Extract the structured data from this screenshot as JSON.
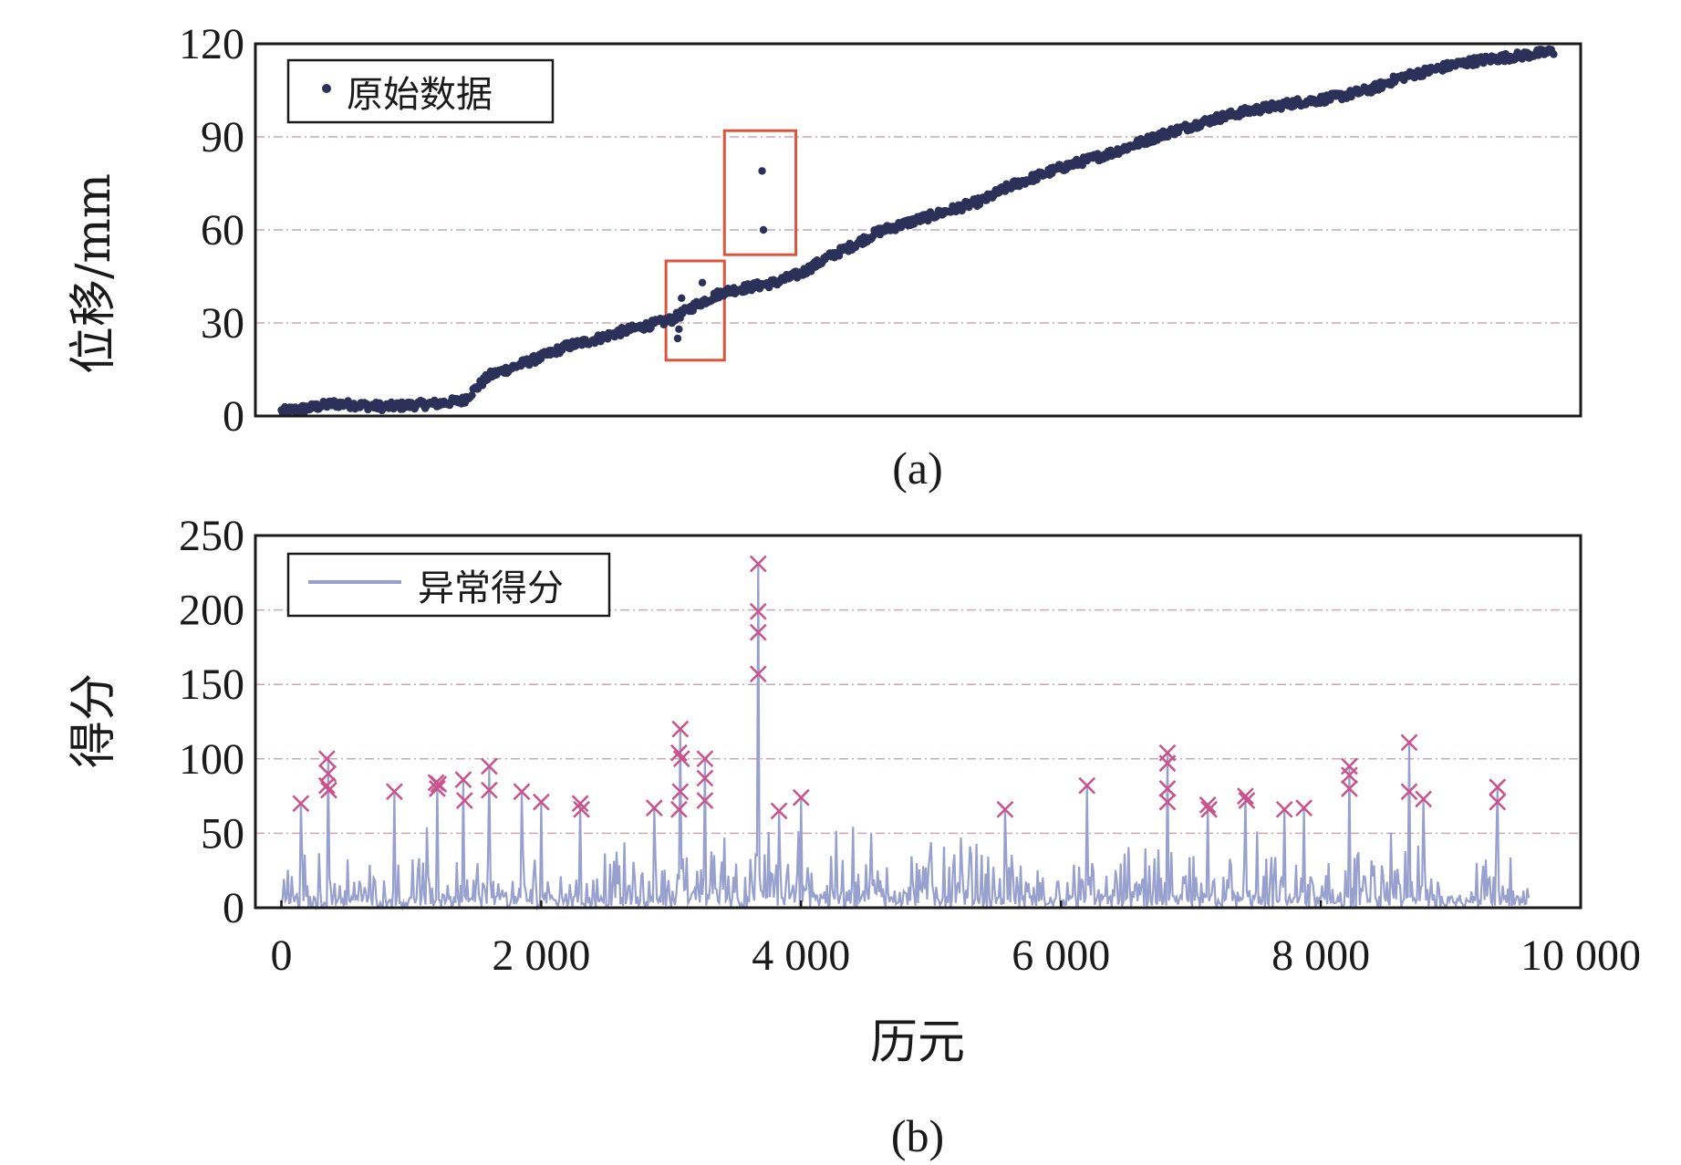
{
  "colors": {
    "raw_points": "#2b3158",
    "score_line": "#98a0cd",
    "anomaly_marker": "#c9528c",
    "highlight_box": "#d9553d",
    "grid": "#c9a7b4",
    "axis": "#1a1a1a"
  },
  "chart_data": [
    {
      "panel_label": "(a)",
      "type": "scatter",
      "ylabel": "位移/mm",
      "xlabel": "",
      "xlim": [
        -200,
        10000
      ],
      "ylim": [
        0,
        120
      ],
      "yticks": [
        "0",
        "30",
        "60",
        "90",
        "120"
      ],
      "grid": "horizontal dash-dot",
      "legend": {
        "placement": "top-left",
        "entries": [
          "原始数据"
        ]
      },
      "series": [
        {
          "name": "原始数据",
          "trend_x": [
            0,
            200,
            400,
            600,
            800,
            1000,
            1200,
            1400,
            1600,
            1800,
            2000,
            2200,
            2400,
            2600,
            2800,
            3000,
            3200,
            3400,
            3600,
            3800,
            4000,
            4200,
            4400,
            4600,
            4800,
            5000,
            5200,
            5400,
            5600,
            5800,
            6000,
            6200,
            6400,
            6600,
            6800,
            7000,
            7200,
            7400,
            7600,
            7800,
            8000,
            8200,
            8400,
            8600,
            8800,
            9000,
            9200,
            9400,
            9600,
            9800
          ],
          "trend_y": [
            1.5,
            2.5,
            4.0,
            3.5,
            3.0,
            3.5,
            4.0,
            5.0,
            13.0,
            16.0,
            19.0,
            22.5,
            24.5,
            27.0,
            29.0,
            31.0,
            36.0,
            40.0,
            41.5,
            43.0,
            46.0,
            51.0,
            55.0,
            59.5,
            62.0,
            64.5,
            67.0,
            69.5,
            74.0,
            77.0,
            80.0,
            82.5,
            85.0,
            88.0,
            91.0,
            93.5,
            96.0,
            98.0,
            99.5,
            101.0,
            102.0,
            103.5,
            105.5,
            109.0,
            111.0,
            113.0,
            114.5,
            115.5,
            116.5,
            117.5
          ],
          "outliers": [
            {
              "x": 3050,
              "y": 25
            },
            {
              "x": 3060,
              "y": 28
            },
            {
              "x": 3040,
              "y": 32
            },
            {
              "x": 3080,
              "y": 38
            },
            {
              "x": 3240,
              "y": 43
            },
            {
              "x": 3700,
              "y": 79
            },
            {
              "x": 3710,
              "y": 60
            }
          ]
        }
      ],
      "highlight_boxes": [
        {
          "x0": 2960,
          "x1": 3410,
          "y0": 18,
          "y1": 50
        },
        {
          "x0": 3410,
          "x1": 3960,
          "y0": 52,
          "y1": 92
        }
      ]
    },
    {
      "panel_label": "(b)",
      "type": "line",
      "ylabel": "得分",
      "xlabel": "历元",
      "xlim": [
        -200,
        10000
      ],
      "ylim": [
        0,
        250
      ],
      "xticks": [
        0,
        2000,
        4000,
        6000,
        8000,
        10000
      ],
      "xtick_labels": [
        "0",
        "2 000",
        "4 000",
        "6 000",
        "8 000",
        "10 000"
      ],
      "yticks": [
        "0",
        "50",
        "100",
        "150",
        "200",
        "250"
      ],
      "grid": "horizontal dash-dot",
      "legend": {
        "placement": "top-left",
        "entries": [
          "异常得分"
        ]
      },
      "series": [
        {
          "name": "异常得分",
          "spikes": [
            {
              "x": 150,
              "y": 70
            },
            {
              "x": 360,
              "y": 100
            },
            {
              "x": 870,
              "y": 78
            },
            {
              "x": 1200,
              "y": 84
            },
            {
              "x": 1400,
              "y": 86
            },
            {
              "x": 1600,
              "y": 95
            },
            {
              "x": 1850,
              "y": 78
            },
            {
              "x": 2000,
              "y": 71
            },
            {
              "x": 2300,
              "y": 70
            },
            {
              "x": 2870,
              "y": 67
            },
            {
              "x": 3070,
              "y": 120
            },
            {
              "x": 3260,
              "y": 100
            },
            {
              "x": 3670,
              "y": 231
            },
            {
              "x": 3830,
              "y": 65
            },
            {
              "x": 4000,
              "y": 74
            },
            {
              "x": 5570,
              "y": 66
            },
            {
              "x": 6200,
              "y": 82
            },
            {
              "x": 6820,
              "y": 104
            },
            {
              "x": 7130,
              "y": 69
            },
            {
              "x": 7420,
              "y": 75
            },
            {
              "x": 7720,
              "y": 66
            },
            {
              "x": 7870,
              "y": 67
            },
            {
              "x": 8220,
              "y": 95
            },
            {
              "x": 8680,
              "y": 111
            },
            {
              "x": 8790,
              "y": 73
            },
            {
              "x": 9360,
              "y": 81
            }
          ],
          "anomaly_markers": [
            {
              "x": 150,
              "y": 70
            },
            {
              "x": 350,
              "y": 100
            },
            {
              "x": 360,
              "y": 90
            },
            {
              "x": 350,
              "y": 82
            },
            {
              "x": 365,
              "y": 79
            },
            {
              "x": 870,
              "y": 78
            },
            {
              "x": 1190,
              "y": 84
            },
            {
              "x": 1200,
              "y": 80
            },
            {
              "x": 1210,
              "y": 83
            },
            {
              "x": 1400,
              "y": 86
            },
            {
              "x": 1410,
              "y": 72
            },
            {
              "x": 1600,
              "y": 95
            },
            {
              "x": 1600,
              "y": 79
            },
            {
              "x": 1850,
              "y": 78
            },
            {
              "x": 2000,
              "y": 71
            },
            {
              "x": 2300,
              "y": 70
            },
            {
              "x": 2310,
              "y": 66
            },
            {
              "x": 2870,
              "y": 67
            },
            {
              "x": 3070,
              "y": 120
            },
            {
              "x": 3060,
              "y": 104
            },
            {
              "x": 3080,
              "y": 100
            },
            {
              "x": 3070,
              "y": 78
            },
            {
              "x": 3060,
              "y": 66
            },
            {
              "x": 3260,
              "y": 100
            },
            {
              "x": 3260,
              "y": 87
            },
            {
              "x": 3260,
              "y": 72
            },
            {
              "x": 3670,
              "y": 231
            },
            {
              "x": 3670,
              "y": 199
            },
            {
              "x": 3670,
              "y": 185
            },
            {
              "x": 3670,
              "y": 157
            },
            {
              "x": 3830,
              "y": 65
            },
            {
              "x": 4000,
              "y": 74
            },
            {
              "x": 5570,
              "y": 66
            },
            {
              "x": 6200,
              "y": 82
            },
            {
              "x": 6820,
              "y": 104
            },
            {
              "x": 6820,
              "y": 97
            },
            {
              "x": 6820,
              "y": 80
            },
            {
              "x": 6820,
              "y": 71
            },
            {
              "x": 7130,
              "y": 69
            },
            {
              "x": 7140,
              "y": 66
            },
            {
              "x": 7420,
              "y": 75
            },
            {
              "x": 7430,
              "y": 72
            },
            {
              "x": 7720,
              "y": 66
            },
            {
              "x": 7870,
              "y": 67
            },
            {
              "x": 8220,
              "y": 95
            },
            {
              "x": 8220,
              "y": 89
            },
            {
              "x": 8220,
              "y": 80
            },
            {
              "x": 8680,
              "y": 111
            },
            {
              "x": 8680,
              "y": 78
            },
            {
              "x": 8790,
              "y": 73
            },
            {
              "x": 9360,
              "y": 81
            },
            {
              "x": 9360,
              "y": 71
            }
          ]
        }
      ]
    }
  ]
}
